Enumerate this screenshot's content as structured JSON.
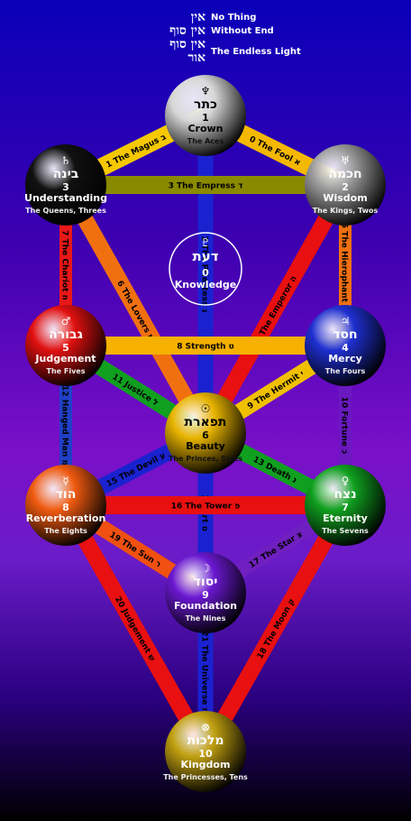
{
  "header": [
    {
      "hebrew": "אין",
      "label": "No Thing"
    },
    {
      "hebrew": "אין סוף",
      "label": "Without End"
    },
    {
      "hebrew": "אין סוף אור",
      "label": "The Endless Light"
    }
  ],
  "sephiroth": [
    {
      "symbol": "♆",
      "hebrew": "כתר",
      "number": "1",
      "name": "Crown",
      "sub": "The Aces",
      "color": "#d8d8d8"
    },
    {
      "symbol": "♅",
      "hebrew": "חכמה",
      "number": "2",
      "name": "Wisdom",
      "sub": "The Kings, Twos",
      "color": "#9a9a9a"
    },
    {
      "symbol": "♄",
      "hebrew": "בינה",
      "number": "3",
      "name": "Understanding",
      "sub": "The Queens, Threes",
      "color": "#111111"
    },
    {
      "symbol": "♃",
      "hebrew": "חסד",
      "number": "4",
      "name": "Mercy",
      "sub": "The Fours",
      "color": "#1f2fd0"
    },
    {
      "symbol": "♂",
      "hebrew": "גבורה",
      "number": "5",
      "name": "Judgement",
      "sub": "The Fives",
      "color": "#e01010"
    },
    {
      "symbol": "☉",
      "hebrew": "תפארת",
      "number": "6",
      "name": "Beauty",
      "sub": "The Princes, Sixes",
      "color": "#e8b400"
    },
    {
      "symbol": "♀",
      "hebrew": "נצח",
      "number": "7",
      "name": "Eternity",
      "sub": "The Sevens",
      "color": "#10a020"
    },
    {
      "symbol": "☿",
      "hebrew": "הוד",
      "number": "8",
      "name": "Reverberation",
      "sub": "The Eights",
      "color": "#f05a10"
    },
    {
      "symbol": "☽",
      "hebrew": "יסוד",
      "number": "9",
      "name": "Foundation",
      "sub": "The Nines",
      "color": "#6a18d0"
    },
    {
      "symbol": "⊗",
      "hebrew": "מלכות",
      "number": "10",
      "name": "Kingdom",
      "sub": "The Princesses, Tens",
      "color": "#c0a010"
    }
  ],
  "daath": {
    "symbol": "♇",
    "hebrew": "דעת",
    "number": "0",
    "name": "Knowledge"
  },
  "paths": [
    {
      "label": "0 The Fool",
      "letter": "א",
      "color": "#f5b800"
    },
    {
      "label": "1 The Magus",
      "letter": "ב",
      "color": "#f5c800"
    },
    {
      "label": "2 The Priestess",
      "letter": "ג",
      "color": "#1a22d0"
    },
    {
      "label": "3 The Empress",
      "letter": "ד",
      "color": "#8a8a00"
    },
    {
      "label": "4 The Emperor",
      "letter": "ה",
      "color": "#e81010"
    },
    {
      "label": "5 The Hierophant",
      "letter": "ו",
      "color": "#f07010"
    },
    {
      "label": "6 The Lovers",
      "letter": "ז",
      "color": "#f07010"
    },
    {
      "label": "7 The Chariot",
      "letter": "ח",
      "color": "#e81818"
    },
    {
      "label": "8 Strength",
      "letter": "ט",
      "color": "#f5b000"
    },
    {
      "label": "9 The Hermit",
      "letter": "י",
      "color": "#f0c000"
    },
    {
      "label": "10 Fortune",
      "letter": "כ",
      "color": "#6a18c0"
    },
    {
      "label": "11 Justice",
      "letter": "ל",
      "color": "#10a020"
    },
    {
      "label": "12 Hanged Man",
      "letter": "מ",
      "color": "#2040c8"
    },
    {
      "label": "13 Death",
      "letter": "נ",
      "color": "#10a020"
    },
    {
      "label": "14 Art",
      "letter": "ס",
      "color": "#1a22d0"
    },
    {
      "label": "15 The Devil",
      "letter": "ע",
      "color": "#1a22d0"
    },
    {
      "label": "16 The Tower",
      "letter": "פ",
      "color": "#e81010"
    },
    {
      "label": "17 The Star",
      "letter": "צ",
      "color": "#7020c0"
    },
    {
      "label": "18 The Moon",
      "letter": "ק",
      "color": "#e81010"
    },
    {
      "label": "19 The Sun",
      "letter": "ר",
      "color": "#f05010"
    },
    {
      "label": "20 Judgement",
      "letter": "ש",
      "color": "#e81010"
    },
    {
      "label": "21 The Universe",
      "letter": "ת",
      "color": "#1a22d0"
    }
  ]
}
